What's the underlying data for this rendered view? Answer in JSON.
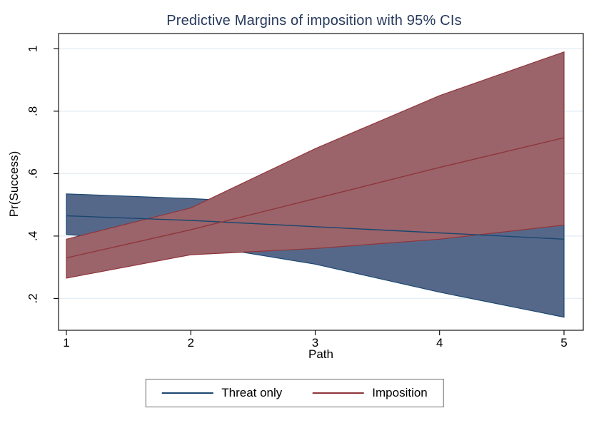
{
  "colors": {
    "background": "#FFFFFF",
    "gridline": "#E4EEF6",
    "axis": "#000000",
    "title_color": "#26395C",
    "legend_border": "#6F6F6F",
    "threat_line": "#1A476F",
    "threat_fill": "#56688A",
    "imposition_line": "#90353B",
    "imposition_fill": "#9A646A"
  },
  "legend": {
    "items": [
      {
        "label": "Threat only",
        "color": "#1A476F"
      },
      {
        "label": "Imposition",
        "color": "#90353B"
      }
    ]
  },
  "chart_data": {
    "type": "area",
    "title": "Predictive Margins of imposition with 95% CIs",
    "xlabel": "Path",
    "ylabel": "Pr(Success)",
    "x": [
      1,
      2,
      3,
      4,
      5
    ],
    "xticks": [
      1,
      2,
      3,
      4,
      5
    ],
    "xtick_labels": [
      "1",
      "2",
      "3",
      "4",
      "5"
    ],
    "yticks": [
      0.2,
      0.4,
      0.6,
      0.8,
      1
    ],
    "ytick_labels": [
      ".2",
      ".4",
      ".6",
      ".8",
      "1"
    ],
    "xlim": [
      0.937,
      5.155
    ],
    "ylim": [
      0.098,
      1.049
    ],
    "grid": "horizontal-only",
    "legend_position": "bottom-center",
    "series": [
      {
        "name": "Threat only",
        "line_color": "#1A476F",
        "fill_color": "#56688A",
        "mean": [
          0.465,
          0.45,
          0.43,
          0.41,
          0.39
        ],
        "upper": [
          0.535,
          0.52,
          0.5,
          0.465,
          0.435
        ],
        "lower": [
          0.405,
          0.375,
          0.31,
          0.22,
          0.14
        ]
      },
      {
        "name": "Imposition",
        "line_color": "#90353B",
        "fill_color": "#9A646A",
        "mean": [
          0.33,
          0.42,
          0.52,
          0.62,
          0.715
        ],
        "upper": [
          0.39,
          0.49,
          0.68,
          0.85,
          0.99
        ],
        "lower": [
          0.265,
          0.34,
          0.36,
          0.39,
          0.435
        ]
      }
    ]
  }
}
